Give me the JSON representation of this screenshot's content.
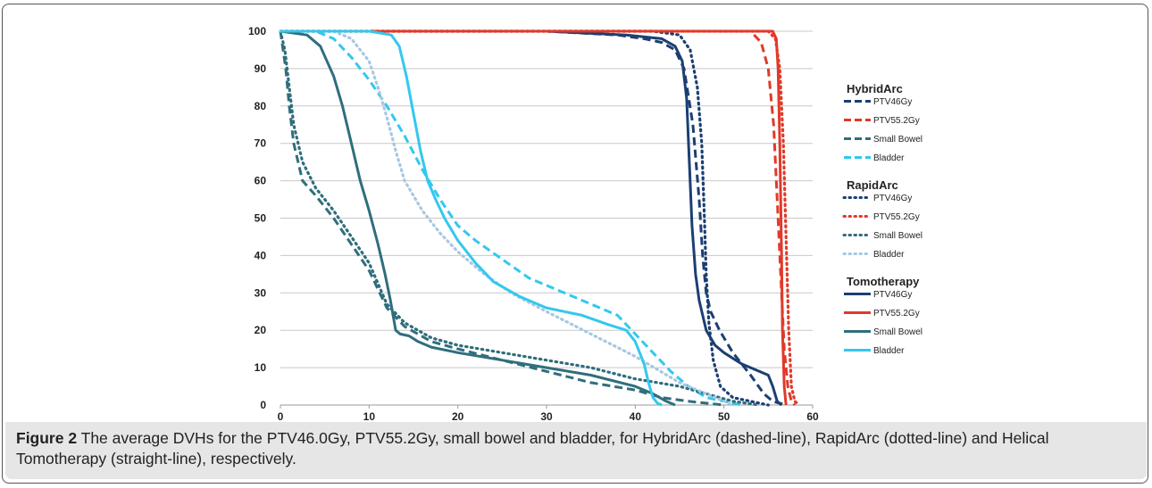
{
  "caption": {
    "label": "Figure 2",
    "text": "The average DVHs for the PTV46.0Gy, PTV55.2Gy, small bowel and bladder, for HybridArc (dashed-line), RapidArc (dotted-line) and Helical Tomotherapy (straight-line), respectively."
  },
  "chart_data": {
    "type": "line",
    "title": "",
    "xlabel": "",
    "ylabel": "",
    "xlim": [
      0,
      60
    ],
    "ylim": [
      0,
      100
    ],
    "x_ticks": [
      "0",
      "10",
      "20",
      "30",
      "40",
      "50",
      "60"
    ],
    "y_ticks": [
      "0",
      "10",
      "20",
      "30",
      "40",
      "50",
      "60",
      "70",
      "80",
      "90",
      "100"
    ],
    "grid": "horizontal",
    "legend_placement": "right",
    "legend_groups": [
      {
        "title": "HybridArc",
        "style": "dashed",
        "items": [
          {
            "label": "PTV46Gy",
            "color": "#1b3f73"
          },
          {
            "label": "PTV55.2Gy",
            "color": "#e03a2a"
          },
          {
            "label": "Small Bowel",
            "color": "#2f6e7d"
          },
          {
            "label": "Bladder",
            "color": "#33c8ee"
          }
        ]
      },
      {
        "title": "RapidArc",
        "style": "dotted",
        "items": [
          {
            "label": "PTV46Gy",
            "color": "#1b3f73"
          },
          {
            "label": "PTV55.2Gy",
            "color": "#e03a2a"
          },
          {
            "label": "Small Bowel",
            "color": "#2f6e7d"
          },
          {
            "label": "Bladder",
            "color": "#a7c8e2"
          }
        ]
      },
      {
        "title": "Tomotherapy",
        "style": "solid",
        "items": [
          {
            "label": "PTV46Gy",
            "color": "#1b3f73"
          },
          {
            "label": "PTV55.2Gy",
            "color": "#e03a2a"
          },
          {
            "label": "Small Bowel",
            "color": "#2f6e7d"
          },
          {
            "label": "Bladder",
            "color": "#33c8ee"
          }
        ]
      }
    ],
    "series": [
      {
        "group": "HybridArc",
        "label": "PTV46Gy",
        "color": "#1b3f73",
        "style": "dashed",
        "points": [
          [
            0,
            100
          ],
          [
            30,
            100
          ],
          [
            38,
            99
          ],
          [
            41,
            98
          ],
          [
            43,
            97
          ],
          [
            44.5,
            95
          ],
          [
            45.5,
            90
          ],
          [
            46.5,
            75
          ],
          [
            47.2,
            55
          ],
          [
            47.6,
            40
          ],
          [
            48,
            30
          ],
          [
            48.5,
            25
          ],
          [
            49.5,
            20
          ],
          [
            51,
            14
          ],
          [
            53,
            8
          ],
          [
            54.5,
            3
          ],
          [
            55.5,
            1
          ],
          [
            57,
            0
          ]
        ]
      },
      {
        "group": "HybridArc",
        "label": "PTV55.2Gy",
        "color": "#e03a2a",
        "style": "dashed",
        "points": [
          [
            0,
            100
          ],
          [
            50,
            100
          ],
          [
            53,
            100
          ],
          [
            54.2,
            97
          ],
          [
            55,
            90
          ],
          [
            55.6,
            75
          ],
          [
            56,
            55
          ],
          [
            56.4,
            35
          ],
          [
            56.8,
            15
          ],
          [
            57.2,
            5
          ],
          [
            57.6,
            1
          ],
          [
            58,
            0
          ]
        ]
      },
      {
        "group": "HybridArc",
        "label": "Small Bowel",
        "color": "#2f6e7d",
        "style": "dashed",
        "points": [
          [
            0,
            100
          ],
          [
            0.6,
            90
          ],
          [
            1,
            80
          ],
          [
            1.5,
            70
          ],
          [
            2.5,
            60
          ],
          [
            4,
            56
          ],
          [
            6,
            50
          ],
          [
            8,
            43
          ],
          [
            10,
            36
          ],
          [
            12,
            26
          ],
          [
            14,
            21
          ],
          [
            17,
            17
          ],
          [
            20,
            15
          ],
          [
            25,
            12
          ],
          [
            30,
            9
          ],
          [
            35,
            6
          ],
          [
            40,
            4
          ],
          [
            43,
            2
          ],
          [
            46,
            1
          ],
          [
            50,
            0
          ]
        ]
      },
      {
        "group": "HybridArc",
        "label": "Bladder",
        "color": "#33c8ee",
        "style": "dashed",
        "points": [
          [
            0,
            100
          ],
          [
            4,
            100
          ],
          [
            6,
            98
          ],
          [
            8,
            93
          ],
          [
            10,
            87
          ],
          [
            12,
            80
          ],
          [
            14,
            72
          ],
          [
            16,
            63
          ],
          [
            18,
            55
          ],
          [
            20,
            48
          ],
          [
            22,
            44
          ],
          [
            25,
            39
          ],
          [
            28,
            34
          ],
          [
            32,
            30
          ],
          [
            35,
            27
          ],
          [
            38,
            24
          ],
          [
            40,
            19
          ],
          [
            42,
            14
          ],
          [
            44,
            9
          ],
          [
            46,
            5
          ],
          [
            48,
            2
          ],
          [
            50,
            1
          ],
          [
            52,
            0
          ]
        ]
      },
      {
        "group": "RapidArc",
        "label": "PTV46Gy",
        "color": "#1b3f73",
        "style": "dotted",
        "points": [
          [
            0,
            100
          ],
          [
            38,
            100
          ],
          [
            42,
            100
          ],
          [
            45,
            99
          ],
          [
            46.2,
            95
          ],
          [
            47,
            85
          ],
          [
            47.5,
            70
          ],
          [
            47.8,
            50
          ],
          [
            48,
            35
          ],
          [
            48.3,
            22
          ],
          [
            48.8,
            12
          ],
          [
            49.6,
            5
          ],
          [
            51,
            2
          ],
          [
            53,
            1
          ],
          [
            55,
            0
          ]
        ]
      },
      {
        "group": "RapidArc",
        "label": "PTV55.2Gy",
        "color": "#e03a2a",
        "style": "dotted",
        "points": [
          [
            0,
            100
          ],
          [
            55,
            100
          ],
          [
            55.8,
            98
          ],
          [
            56.3,
            90
          ],
          [
            56.7,
            70
          ],
          [
            57,
            45
          ],
          [
            57.3,
            20
          ],
          [
            57.6,
            5
          ],
          [
            58,
            1
          ],
          [
            58.5,
            0
          ]
        ]
      },
      {
        "group": "RapidArc",
        "label": "Small Bowel",
        "color": "#2f6e7d",
        "style": "dotted",
        "points": [
          [
            0,
            100
          ],
          [
            0.5,
            95
          ],
          [
            1,
            85
          ],
          [
            1.5,
            75
          ],
          [
            2.5,
            65
          ],
          [
            4,
            58
          ],
          [
            6,
            52
          ],
          [
            8,
            45
          ],
          [
            10,
            38
          ],
          [
            12,
            27
          ],
          [
            14,
            22
          ],
          [
            17,
            18
          ],
          [
            20,
            16
          ],
          [
            25,
            14
          ],
          [
            30,
            12
          ],
          [
            35,
            10
          ],
          [
            40,
            7
          ],
          [
            45,
            5
          ],
          [
            48,
            3
          ],
          [
            51,
            1
          ],
          [
            54,
            0
          ]
        ]
      },
      {
        "group": "RapidArc",
        "label": "Bladder",
        "color": "#a7c8e2",
        "style": "dotted",
        "points": [
          [
            0,
            100
          ],
          [
            6,
            100
          ],
          [
            8,
            98
          ],
          [
            10,
            92
          ],
          [
            11,
            85
          ],
          [
            12,
            77
          ],
          [
            13,
            68
          ],
          [
            14,
            60
          ],
          [
            16,
            52
          ],
          [
            18,
            46
          ],
          [
            20,
            41
          ],
          [
            23,
            35
          ],
          [
            26,
            30
          ],
          [
            30,
            25
          ],
          [
            35,
            19
          ],
          [
            40,
            13
          ],
          [
            45,
            6
          ],
          [
            48,
            3
          ],
          [
            50,
            1
          ],
          [
            51,
            0
          ]
        ]
      },
      {
        "group": "Tomotherapy",
        "label": "PTV46Gy",
        "color": "#1b3f73",
        "style": "solid",
        "points": [
          [
            0,
            100
          ],
          [
            30,
            100
          ],
          [
            39,
            99
          ],
          [
            43,
            98
          ],
          [
            44.5,
            96
          ],
          [
            45.3,
            92
          ],
          [
            45.8,
            82
          ],
          [
            46.1,
            65
          ],
          [
            46.4,
            48
          ],
          [
            46.8,
            35
          ],
          [
            47.2,
            28
          ],
          [
            48,
            20
          ],
          [
            49,
            16
          ],
          [
            50,
            14
          ],
          [
            52,
            11
          ],
          [
            55,
            8
          ],
          [
            55.5,
            5
          ],
          [
            56,
            1
          ],
          [
            56.5,
            0
          ]
        ]
      },
      {
        "group": "Tomotherapy",
        "label": "PTV55.2Gy",
        "color": "#e03a2a",
        "style": "solid",
        "points": [
          [
            0,
            100
          ],
          [
            55.5,
            100
          ],
          [
            55.9,
            98
          ],
          [
            56.1,
            90
          ],
          [
            56.3,
            70
          ],
          [
            56.5,
            40
          ],
          [
            56.6,
            20
          ],
          [
            56.8,
            5
          ],
          [
            57,
            0
          ]
        ]
      },
      {
        "group": "Tomotherapy",
        "label": "Small Bowel",
        "color": "#2f6e7d",
        "style": "solid",
        "points": [
          [
            0,
            100
          ],
          [
            3,
            99
          ],
          [
            4.5,
            96
          ],
          [
            6,
            88
          ],
          [
            7,
            80
          ],
          [
            8,
            70
          ],
          [
            9,
            60
          ],
          [
            10,
            52
          ],
          [
            11,
            43
          ],
          [
            11.8,
            35
          ],
          [
            12.4,
            28
          ],
          [
            13,
            20
          ],
          [
            13.5,
            19
          ],
          [
            14.5,
            18.5
          ],
          [
            15.5,
            17
          ],
          [
            17,
            15.5
          ],
          [
            20,
            14
          ],
          [
            25,
            12
          ],
          [
            30,
            10
          ],
          [
            35,
            8
          ],
          [
            40,
            5
          ],
          [
            42,
            3
          ],
          [
            43.5,
            1
          ],
          [
            44.5,
            0
          ]
        ]
      },
      {
        "group": "Tomotherapy",
        "label": "Bladder",
        "color": "#33c8ee",
        "style": "solid",
        "points": [
          [
            0,
            100
          ],
          [
            10,
            100
          ],
          [
            12.5,
            99
          ],
          [
            13.4,
            96
          ],
          [
            14.2,
            88
          ],
          [
            15,
            78
          ],
          [
            15.8,
            68
          ],
          [
            16.6,
            60
          ],
          [
            17.5,
            55
          ],
          [
            18.5,
            50
          ],
          [
            20,
            44
          ],
          [
            22,
            38
          ],
          [
            24,
            33
          ],
          [
            27,
            29
          ],
          [
            30,
            26
          ],
          [
            34,
            24
          ],
          [
            37,
            21.5
          ],
          [
            39,
            20
          ],
          [
            40,
            17
          ],
          [
            41,
            11
          ],
          [
            41.5,
            6
          ],
          [
            42,
            2
          ],
          [
            42.5,
            0.5
          ],
          [
            43,
            0
          ]
        ]
      }
    ]
  }
}
